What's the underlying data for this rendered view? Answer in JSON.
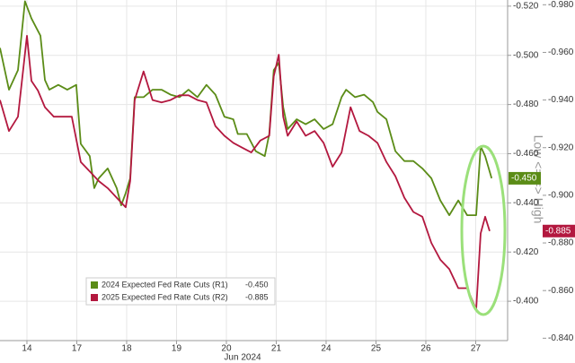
{
  "chart_data": {
    "type": "line",
    "x_label": "Jun 2024",
    "y_label": "Low <= => High",
    "xlim": [
      -0.54,
      9.64
    ],
    "xticks": [
      {
        "value": 0,
        "label": "14"
      },
      {
        "value": 1,
        "label": "17"
      },
      {
        "value": 2,
        "label": "18"
      },
      {
        "value": 3,
        "label": "19"
      },
      {
        "value": 4,
        "label": "20"
      },
      {
        "value": 5,
        "label": "21"
      },
      {
        "value": 6,
        "label": "24"
      },
      {
        "value": 7,
        "label": "25"
      },
      {
        "value": 8,
        "label": "26"
      },
      {
        "value": 9,
        "label": "27"
      }
    ],
    "ylim": [
      -0.384,
      -0.5225
    ],
    "yticks": [
      {
        "value": -0.52,
        "label": "-0.520"
      },
      {
        "value": -0.5,
        "label": "-0.500"
      },
      {
        "value": -0.48,
        "label": "-0.480"
      },
      {
        "value": -0.46,
        "label": "-0.460"
      },
      {
        "value": -0.44,
        "label": "-0.440"
      },
      {
        "value": -0.42,
        "label": "-0.420"
      },
      {
        "value": -0.4,
        "label": "-0.400"
      }
    ],
    "y2lim": [
      -0.839,
      -0.982
    ],
    "y2ticks": [
      {
        "value": -0.98,
        "label": "-0.980"
      },
      {
        "value": -0.96,
        "label": "-0.960"
      },
      {
        "value": -0.94,
        "label": "-0.940"
      },
      {
        "value": -0.92,
        "label": "-0.920"
      },
      {
        "value": -0.9,
        "label": "-0.900"
      },
      {
        "value": -0.88,
        "label": "-0.880"
      },
      {
        "value": -0.86,
        "label": "-0.860"
      },
      {
        "value": -0.84,
        "label": "-0.840"
      }
    ],
    "grid": true,
    "series": [
      {
        "name": "2024 Expected Fed Rate Cuts (R1)",
        "color": "#5b8c17",
        "axis": "y",
        "last_label": "-0.450",
        "x": [
          -0.54,
          -0.36,
          -0.18,
          -0.04,
          0.09,
          0.27,
          0.36,
          0.45,
          0.63,
          0.81,
          0.99,
          1.08,
          1.26,
          1.35,
          1.44,
          1.62,
          1.8,
          1.89,
          1.98,
          2.07,
          2.16,
          2.34,
          2.52,
          2.7,
          2.88,
          3.06,
          3.24,
          3.42,
          3.6,
          3.78,
          3.96,
          4.14,
          4.23,
          4.41,
          4.59,
          4.77,
          4.86,
          4.95,
          5.05,
          5.14,
          5.23,
          5.41,
          5.59,
          5.77,
          5.95,
          6.13,
          6.31,
          6.4,
          6.58,
          6.76,
          6.94,
          7.03,
          7.21,
          7.39,
          7.57,
          7.75,
          7.93,
          8.11,
          8.29,
          8.47,
          8.65,
          8.83,
          9.01,
          9.1,
          9.19,
          9.32
        ],
        "values": [
          -0.503,
          -0.486,
          -0.494,
          -0.522,
          -0.515,
          -0.508,
          -0.49,
          -0.486,
          -0.488,
          -0.486,
          -0.488,
          -0.464,
          -0.459,
          -0.446,
          -0.45,
          -0.454,
          -0.446,
          -0.439,
          -0.444,
          -0.45,
          -0.483,
          -0.483,
          -0.486,
          -0.486,
          -0.484,
          -0.483,
          -0.486,
          -0.483,
          -0.488,
          -0.484,
          -0.475,
          -0.474,
          -0.468,
          -0.468,
          -0.461,
          -0.459,
          -0.468,
          -0.494,
          -0.497,
          -0.479,
          -0.47,
          -0.474,
          -0.472,
          -0.474,
          -0.47,
          -0.472,
          -0.483,
          -0.486,
          -0.483,
          -0.484,
          -0.481,
          -0.477,
          -0.474,
          -0.461,
          -0.457,
          -0.457,
          -0.454,
          -0.45,
          -0.441,
          -0.435,
          -0.441,
          -0.435,
          -0.435,
          -0.463,
          -0.459,
          -0.45
        ]
      },
      {
        "name": "2025 Expected Fed Rate Cuts (R2)",
        "color": "#b3183f",
        "axis": "y2",
        "last_label": "-0.885",
        "x": [
          -0.54,
          -0.36,
          -0.18,
          0,
          0.09,
          0.22,
          0.36,
          0.54,
          0.72,
          0.9,
          1.08,
          1.26,
          1.44,
          1.62,
          1.8,
          1.98,
          2.07,
          2.16,
          2.34,
          2.52,
          2.7,
          2.88,
          3.06,
          3.24,
          3.42,
          3.6,
          3.78,
          3.96,
          4.14,
          4.32,
          4.5,
          4.68,
          4.86,
          4.95,
          5.05,
          5.14,
          5.23,
          5.41,
          5.59,
          5.77,
          5.95,
          6.13,
          6.31,
          6.49,
          6.67,
          6.85,
          7.03,
          7.21,
          7.39,
          7.57,
          7.75,
          7.93,
          8.11,
          8.29,
          8.47,
          8.65,
          8.83,
          9.01,
          9.1,
          9.19,
          9.28
        ],
        "values": [
          -0.94,
          -0.927,
          -0.933,
          -0.967,
          -0.948,
          -0.944,
          -0.937,
          -0.933,
          -0.933,
          -0.933,
          -0.914,
          -0.91,
          -0.906,
          -0.903,
          -0.899,
          -0.895,
          -0.906,
          -0.94,
          -0.952,
          -0.94,
          -0.939,
          -0.94,
          -0.942,
          -0.942,
          -0.94,
          -0.939,
          -0.929,
          -0.925,
          -0.922,
          -0.92,
          -0.918,
          -0.923,
          -0.925,
          -0.95,
          -0.959,
          -0.933,
          -0.925,
          -0.931,
          -0.925,
          -0.927,
          -0.922,
          -0.912,
          -0.918,
          -0.937,
          -0.927,
          -0.925,
          -0.922,
          -0.914,
          -0.908,
          -0.899,
          -0.893,
          -0.891,
          -0.88,
          -0.873,
          -0.869,
          -0.861,
          -0.861,
          -0.852,
          -0.884,
          -0.891,
          -0.885
        ]
      }
    ]
  }
}
